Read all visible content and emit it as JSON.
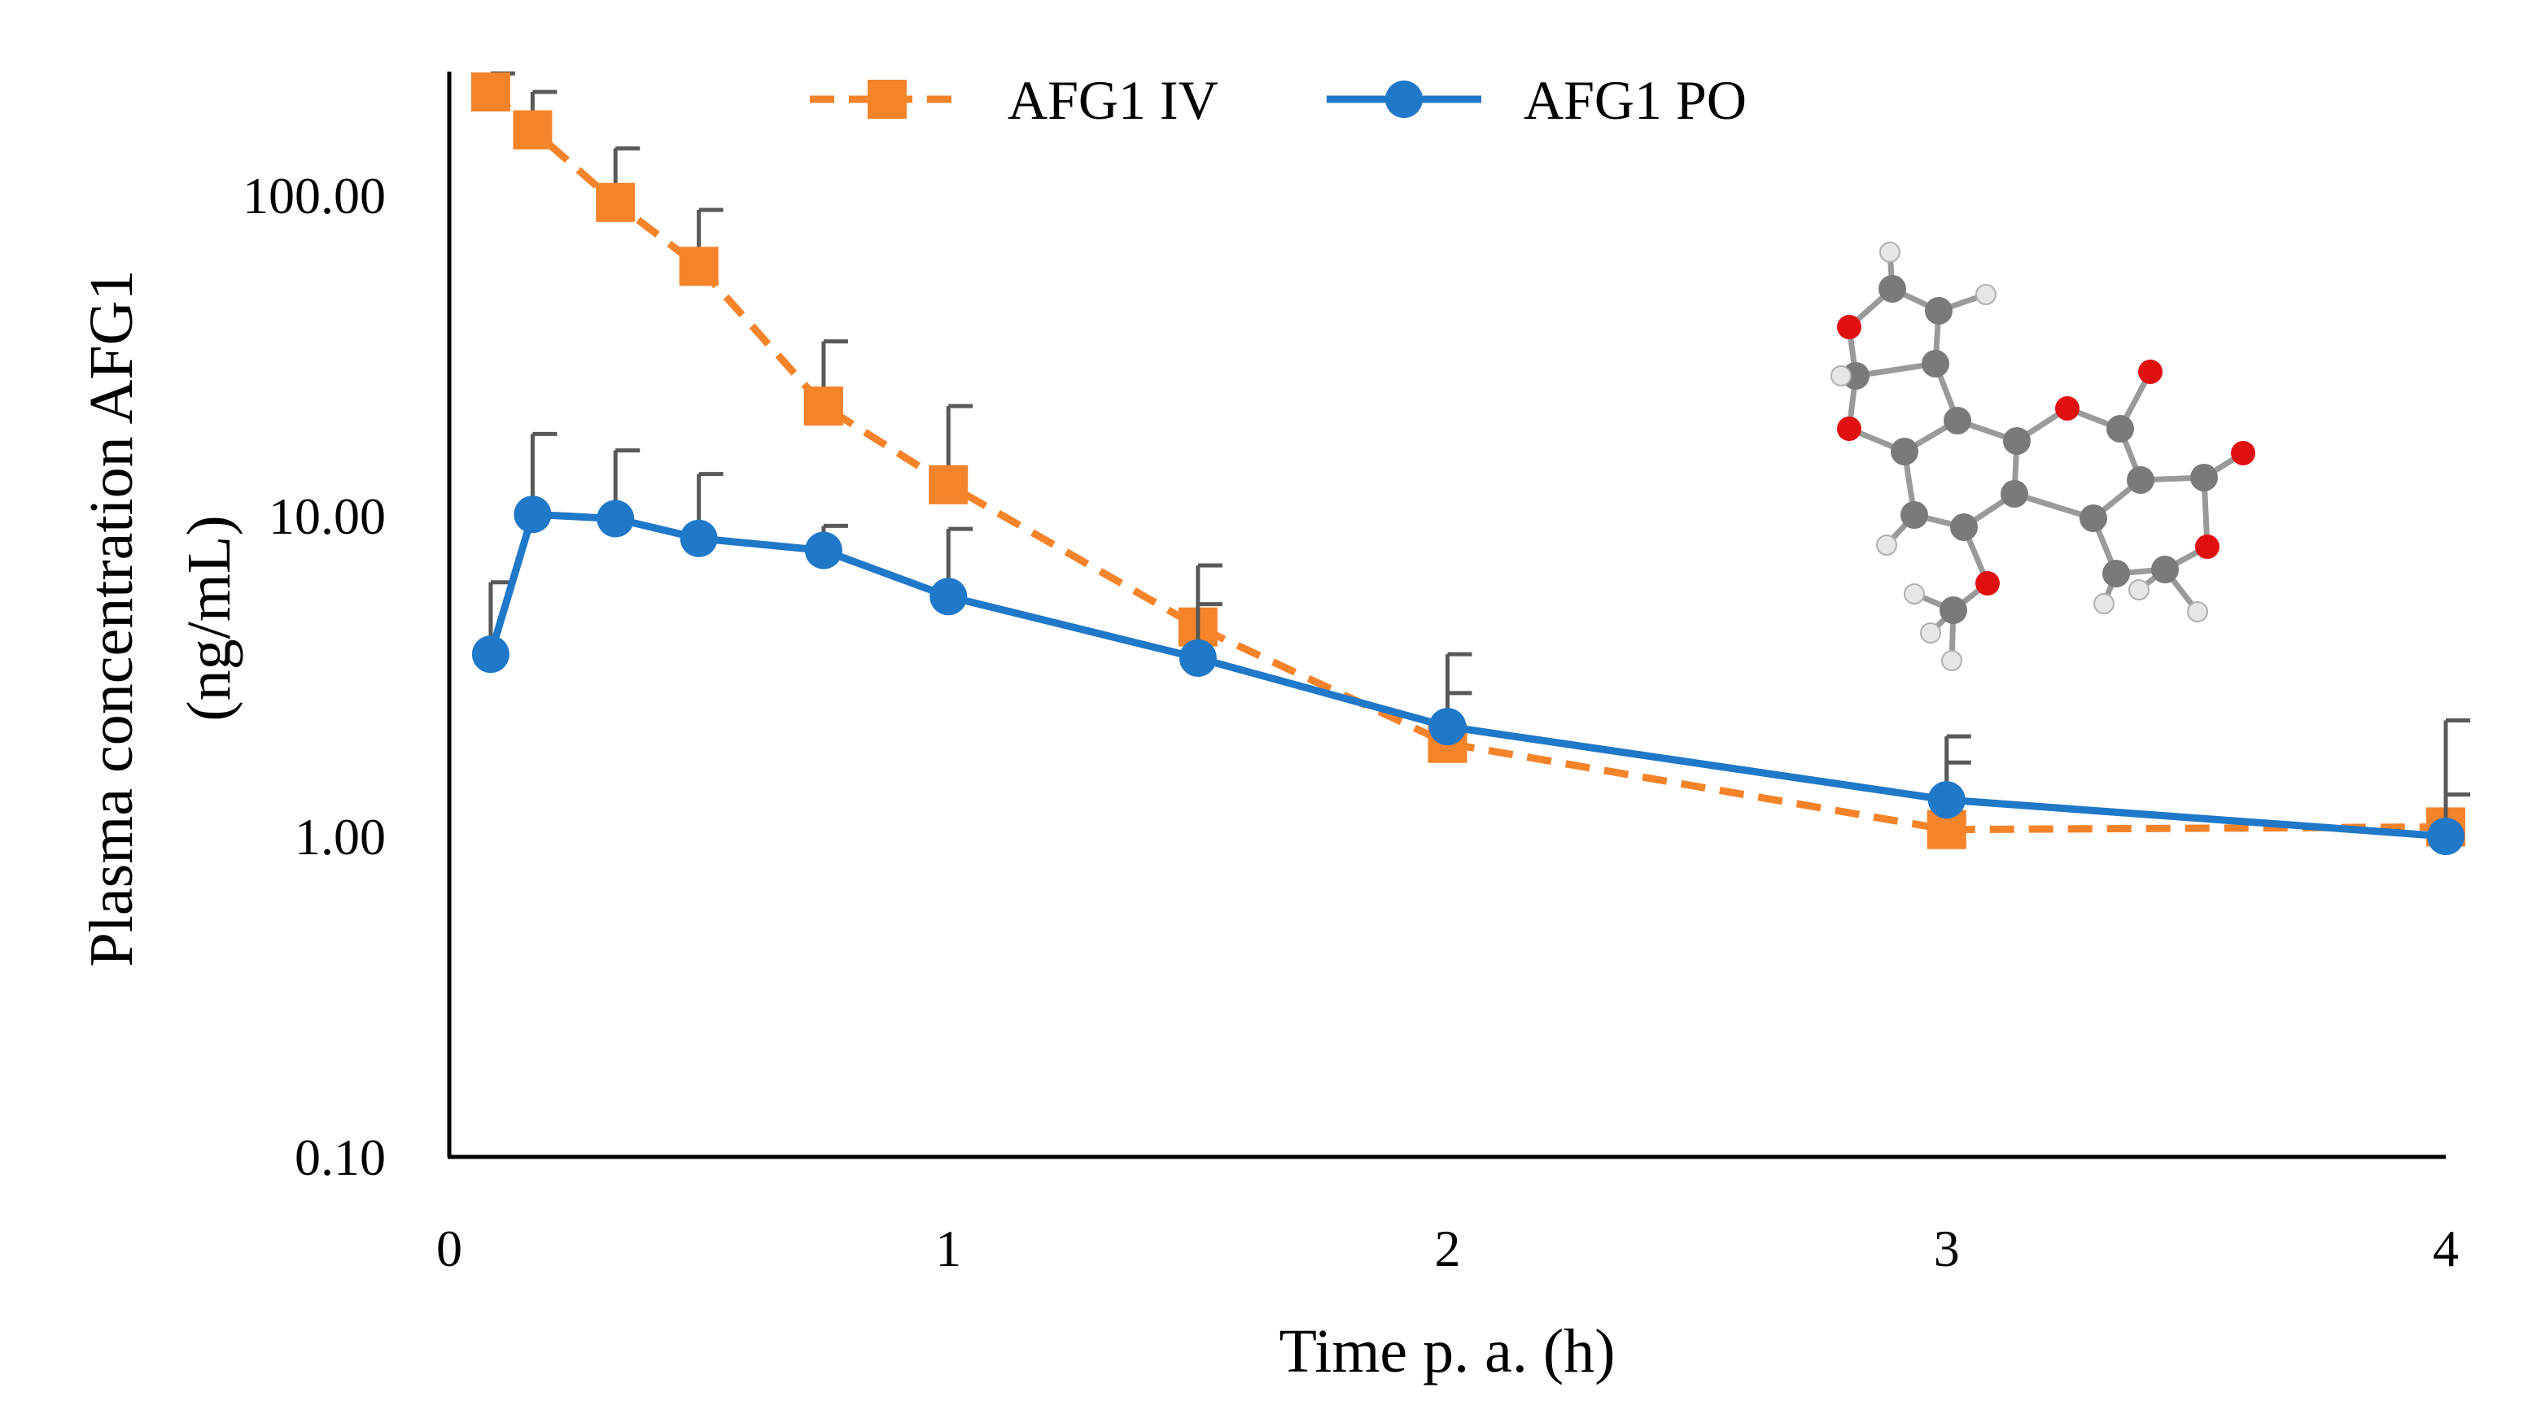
{
  "chart_data": {
    "type": "line",
    "title": "",
    "xlabel": "Time p. a. (h)",
    "ylabel_lines": [
      "Plasma concentration AFG1",
      "(ng/mL)"
    ],
    "yscale": "log",
    "xlim": [
      0,
      4
    ],
    "ylim": [
      0.1,
      250
    ],
    "xticks": [
      0,
      1,
      2,
      3,
      4
    ],
    "xtick_labels": [
      "0",
      "1",
      "2",
      "3",
      "4"
    ],
    "yticks": [
      0.1,
      1,
      10,
      100
    ],
    "ytick_labels": [
      "0.10",
      "1.00",
      "10.00",
      "100.00"
    ],
    "grid": false,
    "legend_position": "top-center",
    "series": [
      {
        "name": "AFG1 IV",
        "color": "#F5832A",
        "line_style": "dashed",
        "marker": "square",
        "x": [
          0.083,
          0.167,
          0.333,
          0.5,
          0.75,
          1,
          1.5,
          2,
          3,
          4
        ],
        "y": [
          210,
          160,
          95,
          60,
          22,
          12.5,
          4.5,
          1.95,
          1.05,
          1.07
        ],
        "error_upper": [
          240,
          210,
          140,
          90,
          35,
          22,
          7,
          3.7,
          1.7,
          2.3
        ]
      },
      {
        "name": "AFG1 PO",
        "color": "#1F78C8",
        "line_style": "solid",
        "marker": "circle",
        "x": [
          0.083,
          0.167,
          0.333,
          0.5,
          0.75,
          1,
          1.5,
          2,
          3,
          4
        ],
        "y": [
          3.7,
          10.1,
          9.8,
          8.5,
          7.8,
          5.6,
          3.6,
          2.2,
          1.3,
          1.0
        ],
        "error_upper": [
          6.2,
          18,
          16,
          13.5,
          9.3,
          9.1,
          5.3,
          2.8,
          2.05,
          1.35
        ]
      }
    ]
  }
}
